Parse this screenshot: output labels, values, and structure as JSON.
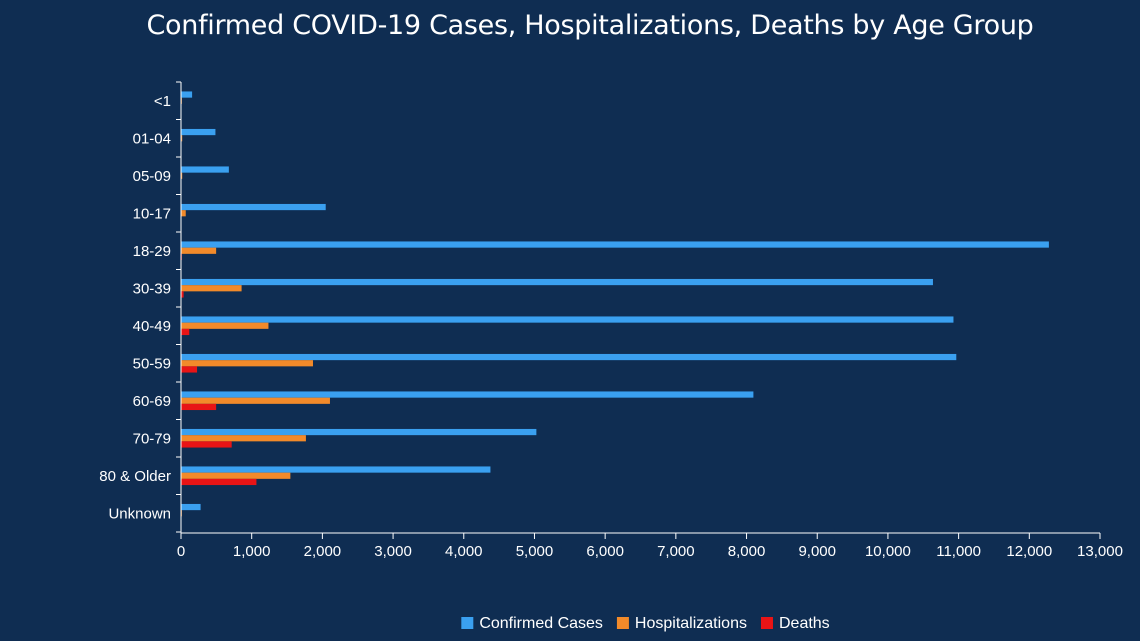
{
  "chart_data": {
    "type": "bar",
    "orientation": "horizontal",
    "title": "Confirmed COVID-19 Cases, Hospitalizations, Deaths by Age Group",
    "categories": [
      "<1",
      "01-04",
      "05-09",
      "10-17",
      "18-29",
      "30-39",
      "40-49",
      "50-59",
      "60-69",
      "70-79",
      "80 & Older",
      "Unknown"
    ],
    "series": [
      {
        "name": "Confirmed Cases",
        "color": "#3aa0f0",
        "values": [
          150,
          480,
          670,
          2040,
          12270,
          10630,
          10920,
          10960,
          8090,
          5020,
          4370,
          270
        ]
      },
      {
        "name": "Hospitalizations",
        "color": "#f28a2a",
        "values": [
          5,
          10,
          10,
          60,
          490,
          850,
          1230,
          1860,
          2100,
          1760,
          1540,
          5
        ]
      },
      {
        "name": "Deaths",
        "color": "#e81416",
        "values": [
          0,
          0,
          0,
          0,
          5,
          30,
          110,
          220,
          490,
          710,
          1060,
          0
        ]
      }
    ],
    "xlim": [
      0,
      13000
    ],
    "xticks": [
      0,
      1000,
      2000,
      3000,
      4000,
      5000,
      6000,
      7000,
      8000,
      9000,
      10000,
      11000,
      12000,
      13000
    ],
    "xtick_labels": [
      "0",
      "1,000",
      "2,000",
      "3,000",
      "4,000",
      "5,000",
      "6,000",
      "7,000",
      "8,000",
      "9,000",
      "10,000",
      "11,000",
      "12,000",
      "13,000"
    ],
    "grid": false,
    "legend_position": "bottom-center"
  }
}
